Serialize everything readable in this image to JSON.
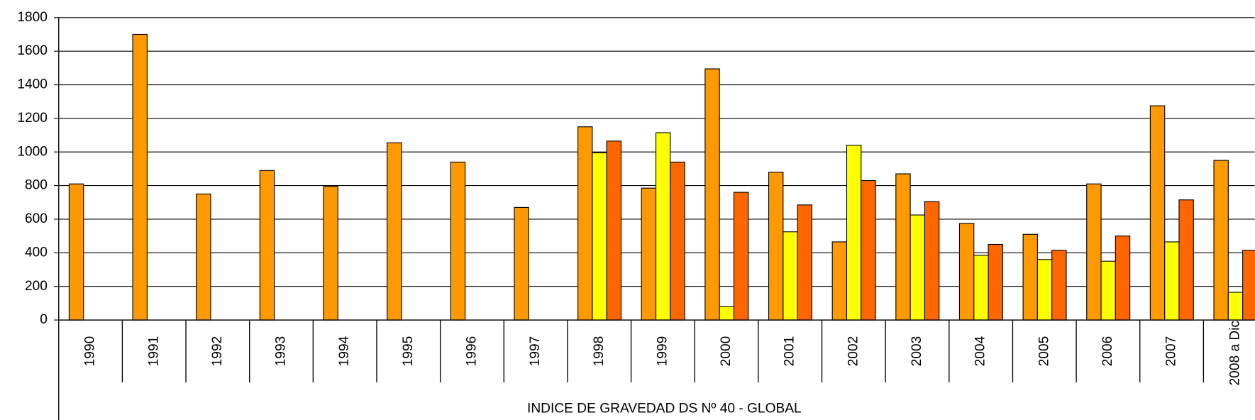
{
  "chart_data": {
    "type": "bar",
    "x_label": "INDICE DE GRAVEDAD DS Nº 40 - GLOBAL",
    "categories": [
      "1990",
      "1991",
      "1992",
      "1993",
      "1994",
      "1995",
      "1996",
      "1997",
      "1998",
      "1999",
      "2000",
      "2001",
      "2002",
      "2003",
      "2004",
      "2005",
      "2006",
      "2007",
      "2008 a Dic."
    ],
    "series": [
      {
        "color": "#ff9900",
        "values": [
          810,
          1700,
          750,
          890,
          795,
          1055,
          940,
          670,
          1150,
          785,
          1495,
          880,
          465,
          870,
          575,
          510,
          810,
          1275,
          950
        ]
      },
      {
        "color": "#ffff00",
        "values": [
          null,
          null,
          null,
          null,
          null,
          null,
          null,
          null,
          995,
          1115,
          80,
          525,
          1040,
          625,
          385,
          360,
          350,
          465,
          165
        ]
      },
      {
        "color": "#ff6600",
        "values": [
          null,
          null,
          null,
          null,
          null,
          null,
          null,
          null,
          1065,
          940,
          760,
          685,
          830,
          705,
          450,
          415,
          500,
          715,
          415
        ]
      }
    ],
    "ylim": [
      0,
      1800
    ],
    "yticks": [
      0,
      200,
      400,
      600,
      800,
      1000,
      1200,
      1400,
      1600,
      1800
    ],
    "grid": true
  }
}
